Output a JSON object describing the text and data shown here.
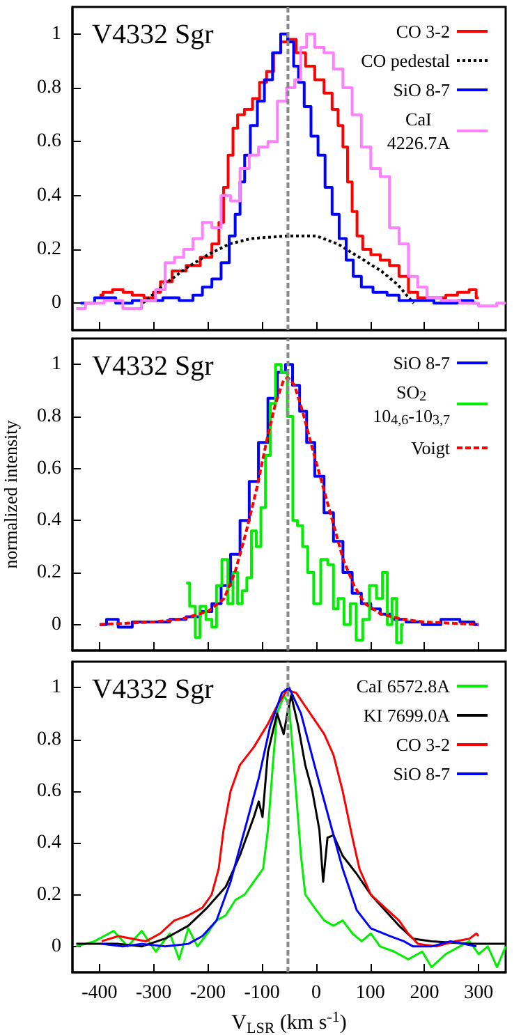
{
  "chart_data": [
    {
      "type": "step",
      "annotations": [
        "V4332 Sgr"
      ],
      "xlim": [
        -450,
        350
      ],
      "xticks": [
        -400,
        -300,
        -200,
        -100,
        0,
        100,
        200,
        300
      ],
      "ylim": [
        -0.1,
        1.1
      ],
      "yticks": [
        0,
        0.2,
        0.4,
        0.6,
        0.8,
        1
      ],
      "tick_labels": "y",
      "legend": "top right",
      "grid": false,
      "ref_lines": [
        {
          "axis": "x",
          "value": -52,
          "color": "#888888",
          "line_style": "dashed"
        }
      ],
      "series": [
        {
          "name": "CO 3-2",
          "color": "#ff0000",
          "x": [
            -400,
            -387,
            -365,
            -348,
            -331,
            -305,
            -296,
            -279,
            -253,
            -227,
            -201,
            -184,
            -175,
            -167,
            -158,
            -149,
            -141,
            -124,
            -111,
            -98,
            -85,
            -72,
            -59,
            -46,
            -28,
            -11,
            6,
            23,
            36,
            45,
            54,
            62,
            71,
            80,
            92,
            110,
            127,
            144,
            162,
            179,
            196,
            231,
            248,
            274,
            291,
            300
          ],
          "values": [
            0.03,
            0.04,
            0.05,
            0.04,
            0.03,
            0.02,
            0.04,
            0.08,
            0.12,
            0.14,
            0.17,
            0.22,
            0.3,
            0.43,
            0.55,
            0.65,
            0.7,
            0.72,
            0.76,
            0.82,
            0.86,
            0.93,
            0.97,
            0.98,
            0.93,
            0.88,
            0.83,
            0.78,
            0.72,
            0.66,
            0.58,
            0.45,
            0.34,
            0.25,
            0.2,
            0.18,
            0.16,
            0.14,
            0.1,
            0.04,
            0.02,
            0.02,
            0.03,
            0.04,
            0.05,
            0.02
          ]
        },
        {
          "name": "CO pedestal",
          "type": "line",
          "line_style": "dotted",
          "color": "#000000",
          "x": [
            -320,
            -280,
            -240,
            -200,
            -160,
            -120,
            -52,
            0,
            40,
            80,
            120,
            150,
            180
          ],
          "values": [
            0,
            0.07,
            0.13,
            0.18,
            0.22,
            0.24,
            0.25,
            0.25,
            0.22,
            0.17,
            0.12,
            0.07,
            0
          ]
        },
        {
          "name": "SiO 8-7",
          "color": "#0000ff",
          "x": [
            -435,
            -383,
            -357,
            -322,
            -296,
            -270,
            -236,
            -219,
            -201,
            -184,
            -167,
            -154,
            -145,
            -136,
            -128,
            -115,
            -102,
            -89,
            -72,
            -59,
            -46,
            -37,
            -28,
            -16,
            -3,
            10,
            23,
            36,
            49,
            62,
            75,
            92,
            118,
            144,
            162,
            196,
            239,
            283,
            296
          ],
          "values": [
            0,
            0.02,
            0,
            0.01,
            0.01,
            0.02,
            0.01,
            0.03,
            0.06,
            0.09,
            0.15,
            0.25,
            0.33,
            0.45,
            0.55,
            0.66,
            0.75,
            0.83,
            0.93,
            1,
            0.97,
            0.88,
            0.82,
            0.73,
            0.62,
            0.55,
            0.43,
            0.33,
            0.24,
            0.16,
            0.1,
            0.06,
            0.04,
            0.03,
            0.01,
            0.01,
            0,
            0.01,
            0
          ]
        },
        {
          "name": "CaI\n4226.7A",
          "color": "#ff80ff",
          "x": [
            -443,
            -409,
            -374,
            -340,
            -305,
            -288,
            -270,
            -253,
            -236,
            -219,
            -201,
            -184,
            -167,
            -149,
            -132,
            -115,
            -98,
            -80,
            -63,
            -46,
            -33,
            -24,
            -11,
            6,
            23,
            41,
            58,
            75,
            92,
            110,
            127,
            144,
            162,
            179,
            196,
            213,
            248,
            283,
            317,
            350
          ],
          "values": [
            -0.02,
            0,
            0.01,
            -0.02,
            0.01,
            0.05,
            0.15,
            0.17,
            0.2,
            0.24,
            0.3,
            0.28,
            0.4,
            0.38,
            0.5,
            0.55,
            0.58,
            0.6,
            0.75,
            0.8,
            0.83,
            0.95,
            1,
            0.95,
            0.93,
            0.87,
            0.8,
            0.7,
            0.58,
            0.5,
            0.47,
            0.28,
            0.22,
            0.1,
            0.06,
            0.02,
            0.01,
            0,
            -0.01,
            0
          ]
        }
      ]
    },
    {
      "type": "step",
      "annotations": [
        "V4332 Sgr"
      ],
      "ylabel": "normalized intensity",
      "xlim": [
        -450,
        350
      ],
      "xticks": [
        -400,
        -300,
        -200,
        -100,
        0,
        100,
        200,
        300
      ],
      "ylim": [
        -0.1,
        1.1
      ],
      "yticks": [
        0,
        0.2,
        0.4,
        0.6,
        0.8,
        1
      ],
      "tick_labels": "y",
      "legend": "top right",
      "grid": false,
      "ref_lines": [
        {
          "axis": "x",
          "value": -52,
          "color": "#888888",
          "line_style": "dashed"
        }
      ],
      "series": [
        {
          "name": "SiO 8-7",
          "color": "#0000ff",
          "x": [
            -400,
            -374,
            -357,
            -322,
            -288,
            -253,
            -227,
            -201,
            -184,
            -167,
            -149,
            -132,
            -115,
            -98,
            -80,
            -63,
            -50,
            -37,
            -24,
            -11,
            6,
            23,
            41,
            58,
            75,
            92,
            110,
            127,
            153,
            179,
            213,
            248,
            283,
            300
          ],
          "values": [
            0,
            0.02,
            -0.01,
            0.01,
            0.01,
            0.02,
            0.03,
            0.05,
            0.08,
            0.15,
            0.27,
            0.4,
            0.55,
            0.7,
            0.87,
            0.97,
            1,
            0.92,
            0.82,
            0.7,
            0.57,
            0.43,
            0.32,
            0.2,
            0.12,
            0.08,
            0.06,
            0.04,
            0.02,
            0.01,
            0,
            0.02,
            0.01,
            0
          ]
        },
        {
          "name": "SO$_{2}$\n10$_{4,6}$-10$_{3,7}$",
          "color": "#00ee00",
          "x": [
            -240,
            -227,
            -219,
            -210,
            -197,
            -188,
            -180,
            -168,
            -158,
            -149,
            -141,
            -132,
            -124,
            -115,
            -106,
            -98,
            -89,
            -80,
            -70,
            -59,
            -47,
            -39,
            -30,
            -20,
            -11,
            2,
            15,
            28,
            36,
            45,
            58,
            68,
            80,
            92,
            105,
            118,
            127,
            136,
            144,
            153,
            162
          ],
          "values": [
            0.16,
            0.07,
            -0.05,
            0.07,
            0.02,
            -0.01,
            0.15,
            0.25,
            0.08,
            0.2,
            0.08,
            0.13,
            0.18,
            0.36,
            0.3,
            0.45,
            0.65,
            0.85,
            1,
            0.97,
            0.8,
            0.4,
            0.38,
            0.3,
            0.2,
            0.08,
            0.25,
            0.23,
            0.06,
            0.1,
            0,
            0.08,
            -0.06,
            0.02,
            0.15,
            0.1,
            0.2,
            0,
            0.1,
            -0.07,
            0
          ]
        },
        {
          "name": "Voigt",
          "type": "line",
          "line_style": "dashed",
          "color": "#ff0000",
          "x": [
            -400,
            -300,
            -250,
            -200,
            -170,
            -150,
            -130,
            -110,
            -90,
            -75,
            -60,
            -52,
            -40,
            -25,
            -10,
            10,
            30,
            50,
            70,
            90,
            120,
            160,
            200,
            300
          ],
          "values": [
            0,
            0.01,
            0.02,
            0.05,
            0.1,
            0.2,
            0.35,
            0.52,
            0.72,
            0.85,
            0.94,
            0.95,
            0.92,
            0.82,
            0.7,
            0.55,
            0.4,
            0.25,
            0.15,
            0.08,
            0.04,
            0.02,
            0.01,
            0
          ]
        }
      ]
    },
    {
      "type": "line",
      "annotations": [
        "V4332 Sgr"
      ],
      "xlabel": "V$_{LSR}$ (km s$^{-1}$)",
      "xlim": [
        -450,
        350
      ],
      "xticks": [
        -400,
        -300,
        -200,
        -100,
        0,
        100,
        200,
        300
      ],
      "ylim": [
        -0.1,
        1.1
      ],
      "yticks": [
        0,
        0.2,
        0.4,
        0.6,
        0.8,
        1
      ],
      "legend": "top right",
      "grid": false,
      "ref_lines": [
        {
          "axis": "x",
          "value": -52,
          "color": "#888888",
          "line_style": "dashed"
        }
      ],
      "series": [
        {
          "name": "CaI 6572.8A",
          "color": "#00ee00",
          "x": [
            -443,
            -409,
            -374,
            -348,
            -322,
            -296,
            -270,
            -253,
            -236,
            -219,
            -201,
            -184,
            -167,
            -149,
            -132,
            -115,
            -98,
            -89,
            -80,
            -72,
            -59,
            -50,
            -41,
            -28,
            -20,
            -3,
            15,
            32,
            49,
            67,
            84,
            101,
            118,
            144,
            170,
            196,
            213,
            239,
            265,
            283,
            300,
            317,
            334,
            350
          ],
          "values": [
            0,
            0.02,
            0.06,
            0,
            0.06,
            -0.02,
            0.05,
            -0.05,
            0.07,
            0,
            0.05,
            0.1,
            0.12,
            0.18,
            0.2,
            0.25,
            0.3,
            0.45,
            0.7,
            0.9,
            0.97,
            0.93,
            0.7,
            0.35,
            0.2,
            0.15,
            0.1,
            0.08,
            0.1,
            0.05,
            0.02,
            0.05,
            0,
            -0.02,
            -0.05,
            -0.02,
            -0.08,
            -0.03,
            0,
            0.02,
            -0.03,
            0,
            -0.08,
            0
          ]
        },
        {
          "name": "KI 7699.0A",
          "color": "#000000",
          "x": [
            -443,
            -365,
            -322,
            -279,
            -236,
            -201,
            -167,
            -141,
            -115,
            -106,
            -99,
            -89,
            -72,
            -60,
            -53,
            -46,
            -33,
            -20,
            -7,
            6,
            13,
            21,
            32,
            49,
            75,
            101,
            127,
            153,
            179,
            213,
            283,
            350
          ],
          "values": [
            0.01,
            0.01,
            0,
            0.03,
            0.08,
            0.15,
            0.23,
            0.35,
            0.5,
            0.56,
            0.5,
            0.75,
            0.9,
            0.82,
            0.9,
            0.97,
            0.85,
            0.7,
            0.6,
            0.45,
            0.25,
            0.42,
            0.43,
            0.35,
            0.28,
            0.2,
            0.14,
            0.08,
            0.03,
            0.02,
            0.01,
            0.01
          ]
        },
        {
          "name": "CO 3-2",
          "color": "#ff0000",
          "x": [
            -396,
            -365,
            -340,
            -314,
            -288,
            -262,
            -236,
            -210,
            -193,
            -180,
            -171,
            -158,
            -141,
            -115,
            -89,
            -72,
            -54,
            -37,
            -11,
            15,
            32,
            49,
            67,
            80,
            101,
            127,
            153,
            170,
            188,
            222,
            257,
            283,
            296,
            300
          ],
          "values": [
            0.02,
            0.04,
            0.03,
            0.02,
            0.05,
            0.1,
            0.12,
            0.15,
            0.2,
            0.3,
            0.45,
            0.6,
            0.7,
            0.77,
            0.86,
            0.93,
            0.99,
            0.98,
            0.9,
            0.82,
            0.74,
            0.6,
            0.42,
            0.3,
            0.2,
            0.15,
            0.1,
            0.05,
            0.01,
            0,
            0.02,
            0.03,
            0.05,
            0.04
          ]
        },
        {
          "name": "SiO 8-7",
          "color": "#0000ff",
          "x": [
            -396,
            -357,
            -322,
            -279,
            -236,
            -210,
            -184,
            -158,
            -132,
            -106,
            -85,
            -63,
            -50,
            -28,
            -3,
            23,
            49,
            75,
            101,
            136,
            162,
            179,
            213,
            248,
            296
          ],
          "values": [
            0.01,
            0,
            0.01,
            0,
            0.01,
            0.04,
            0.1,
            0.25,
            0.45,
            0.65,
            0.85,
            0.98,
            1,
            0.9,
            0.7,
            0.5,
            0.3,
            0.14,
            0.07,
            0.04,
            0.02,
            0,
            0,
            0.02,
            0
          ]
        }
      ]
    }
  ]
}
